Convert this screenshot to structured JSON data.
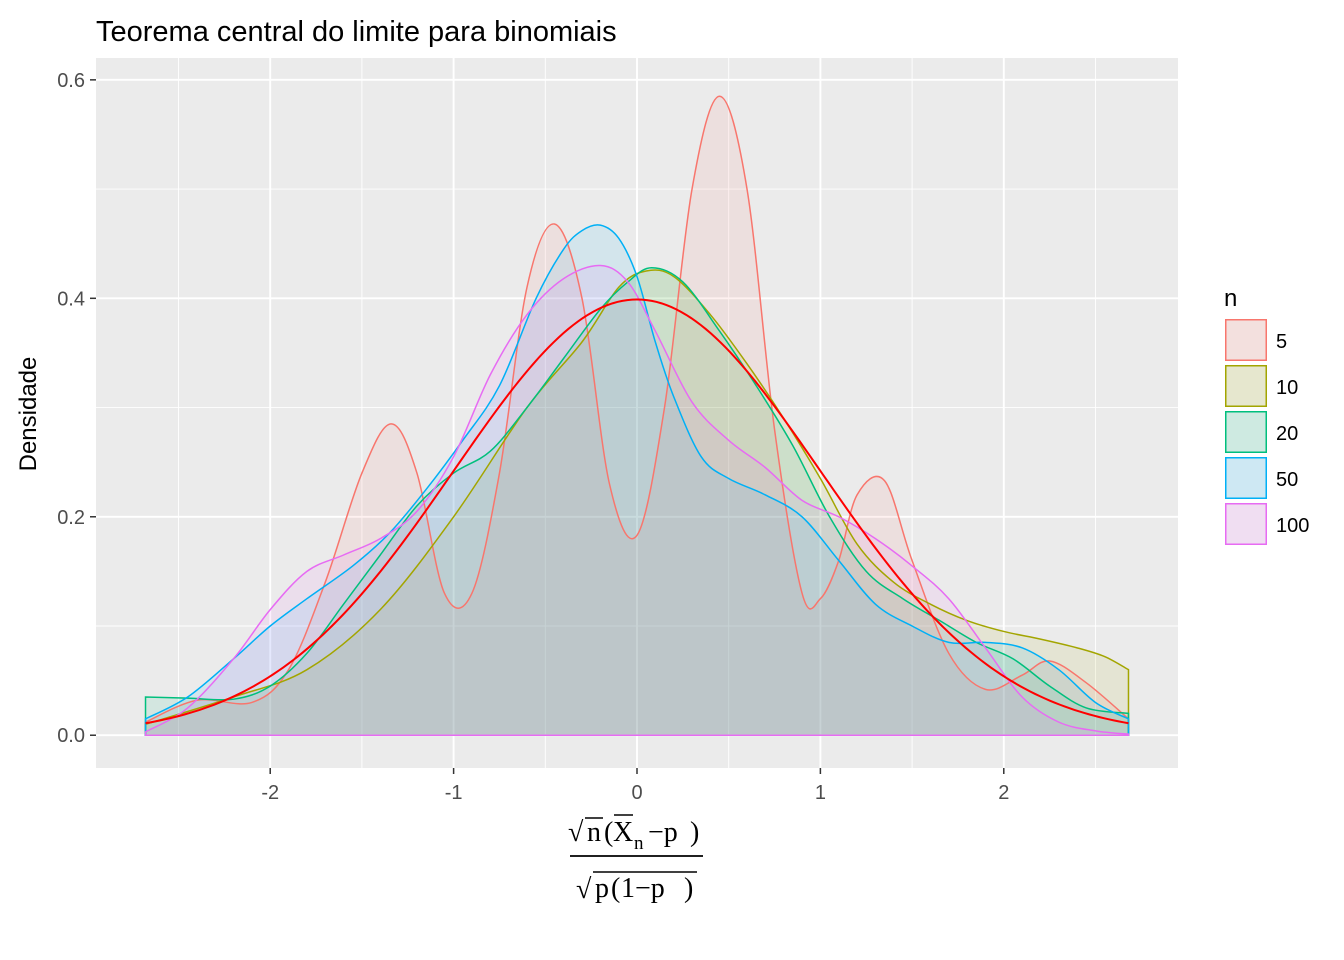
{
  "chart_data": {
    "type": "area",
    "title": "Teorema central do limite para binomiais",
    "ylabel": "Densidade",
    "xlabel": {
      "num_root": "n",
      "xbar": "X",
      "xbar_sub": "n",
      "num_tail": "−p",
      "den_p": "p",
      "den_inner": "1−p"
    },
    "xlim": [
      -2.95,
      2.95
    ],
    "ylim": [
      -0.03,
      0.62
    ],
    "x_ticks": [
      -2,
      -1,
      0,
      1,
      2
    ],
    "x_tick_labels": [
      "-2",
      "-1",
      "0",
      "1",
      "2"
    ],
    "y_ticks": [
      0.0,
      0.2,
      0.4,
      0.6
    ],
    "y_tick_labels": [
      "0.0",
      "0.2",
      "0.4",
      "0.6"
    ],
    "grid": true,
    "panel_background": "#ebebeb",
    "legend": {
      "title": "n",
      "position": "right",
      "entries": [
        {
          "label": "5",
          "color": "#f8766d"
        },
        {
          "label": "10",
          "color": "#a3a500"
        },
        {
          "label": "20",
          "color": "#00bf7d"
        },
        {
          "label": "50",
          "color": "#00b0f6"
        },
        {
          "label": "100",
          "color": "#e76bf3"
        }
      ]
    },
    "series": [
      {
        "name": "5",
        "color": "#f8766d",
        "x": [
          -2.68,
          -2.4,
          -2.1,
          -1.9,
          -1.7,
          -1.5,
          -1.34,
          -1.2,
          -1.05,
          -0.9,
          -0.75,
          -0.6,
          -0.45,
          -0.3,
          -0.15,
          0,
          0.15,
          0.3,
          0.45,
          0.6,
          0.75,
          0.9,
          1.0,
          1.1,
          1.2,
          1.35,
          1.5,
          1.7,
          1.9,
          2.1,
          2.25,
          2.45,
          2.68
        ],
        "y": [
          0.012,
          0.032,
          0.03,
          0.06,
          0.14,
          0.24,
          0.285,
          0.24,
          0.13,
          0.13,
          0.24,
          0.41,
          0.468,
          0.4,
          0.23,
          0.183,
          0.3,
          0.5,
          0.585,
          0.5,
          0.28,
          0.13,
          0.125,
          0.16,
          0.22,
          0.233,
          0.16,
          0.075,
          0.042,
          0.055,
          0.068,
          0.048,
          0.015
        ]
      },
      {
        "name": "10",
        "color": "#a3a500",
        "x": [
          -2.68,
          -2.2,
          -1.8,
          -1.4,
          -1.0,
          -0.6,
          -0.3,
          -0.1,
          0.05,
          0.2,
          0.4,
          0.6,
          0.8,
          1.0,
          1.2,
          1.4,
          1.6,
          1.8,
          2.0,
          2.2,
          2.4,
          2.55,
          2.68
        ],
        "y": [
          0.01,
          0.035,
          0.06,
          0.115,
          0.2,
          0.3,
          0.36,
          0.41,
          0.425,
          0.42,
          0.385,
          0.34,
          0.29,
          0.235,
          0.175,
          0.14,
          0.12,
          0.105,
          0.095,
          0.088,
          0.08,
          0.072,
          0.06
        ]
      },
      {
        "name": "20",
        "color": "#00bf7d",
        "x": [
          -2.68,
          -2.45,
          -2.2,
          -2.0,
          -1.8,
          -1.6,
          -1.4,
          -1.2,
          -1.0,
          -0.8,
          -0.6,
          -0.4,
          -0.2,
          -0.05,
          0.08,
          0.25,
          0.45,
          0.65,
          0.85,
          1.05,
          1.25,
          1.45,
          1.65,
          1.85,
          2.05,
          2.25,
          2.45,
          2.68
        ],
        "y": [
          0.035,
          0.034,
          0.033,
          0.045,
          0.075,
          0.12,
          0.165,
          0.21,
          0.24,
          0.26,
          0.3,
          0.345,
          0.39,
          0.415,
          0.428,
          0.415,
          0.37,
          0.32,
          0.265,
          0.2,
          0.15,
          0.125,
          0.105,
          0.085,
          0.07,
          0.045,
          0.025,
          0.02
        ]
      },
      {
        "name": "50",
        "color": "#00b0f6",
        "x": [
          -2.68,
          -2.45,
          -2.2,
          -2.0,
          -1.8,
          -1.55,
          -1.35,
          -1.15,
          -0.95,
          -0.75,
          -0.55,
          -0.4,
          -0.3,
          -0.2,
          -0.1,
          0,
          0.1,
          0.2,
          0.35,
          0.5,
          0.7,
          0.9,
          1.1,
          1.3,
          1.5,
          1.7,
          1.9,
          2.1,
          2.3,
          2.5,
          2.68
        ],
        "y": [
          0.015,
          0.035,
          0.07,
          0.1,
          0.125,
          0.155,
          0.185,
          0.225,
          0.27,
          0.32,
          0.4,
          0.445,
          0.462,
          0.467,
          0.455,
          0.42,
          0.36,
          0.31,
          0.255,
          0.235,
          0.22,
          0.2,
          0.16,
          0.12,
          0.1,
          0.085,
          0.085,
          0.08,
          0.06,
          0.03,
          0.015
        ]
      },
      {
        "name": "100",
        "color": "#e76bf3",
        "x": [
          -2.68,
          -2.45,
          -2.2,
          -2.0,
          -1.8,
          -1.6,
          -1.4,
          -1.2,
          -1.0,
          -0.8,
          -0.6,
          -0.4,
          -0.2,
          -0.05,
          0.1,
          0.3,
          0.5,
          0.7,
          0.9,
          1.1,
          1.3,
          1.5,
          1.7,
          1.9,
          2.1,
          2.3,
          2.5,
          2.68
        ],
        "y": [
          0.003,
          0.025,
          0.07,
          0.115,
          0.15,
          0.165,
          0.18,
          0.205,
          0.255,
          0.33,
          0.385,
          0.418,
          0.43,
          0.415,
          0.37,
          0.305,
          0.27,
          0.245,
          0.215,
          0.2,
          0.18,
          0.155,
          0.125,
          0.08,
          0.035,
          0.012,
          0.004,
          0.001
        ]
      }
    ],
    "reference_curve": {
      "label": "N(0,1)",
      "color": "#ff0000",
      "xmin": -2.68,
      "xmax": 2.68
    }
  }
}
